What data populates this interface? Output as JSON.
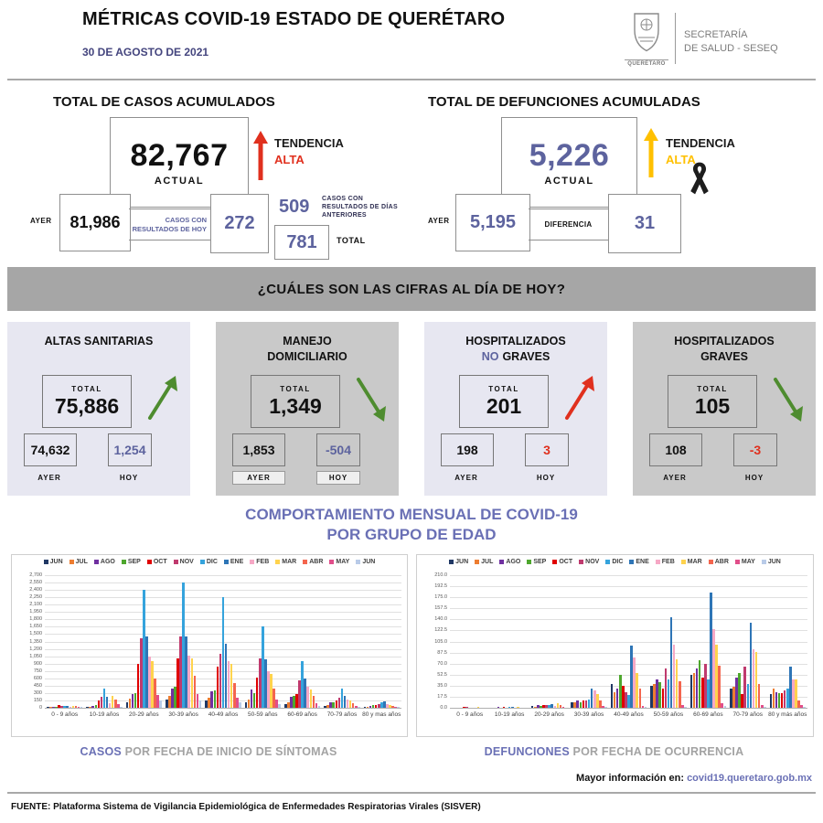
{
  "header": {
    "title": "MÉTRICAS COVID-19 ESTADO DE QUERÉTARO",
    "date": "30 DE AGOSTO DE 2021",
    "logo_caption": "QUERÉTARO",
    "org_line1": "SECRETARÍA",
    "org_line2": "DE SALUD - SESEQ"
  },
  "cases": {
    "title": "TOTAL DE CASOS ACUMULADOS",
    "actual_value": "82,767",
    "actual_label": "ACTUAL",
    "trend_label": "TENDENCIA",
    "trend_value": "ALTA",
    "ayer_label": "AYER",
    "ayer_value": "81,986",
    "today_label": "CASOS CON RESULTADOS DE HOY",
    "today_value": "272",
    "prev_value": "509",
    "prev_label": "CASOS CON RESULTADOS DE DÍAS ANTERIORES",
    "total_value": "781",
    "total_label": "TOTAL"
  },
  "deaths": {
    "title": "TOTAL DE DEFUNCIONES ACUMULADAS",
    "actual_value": "5,226",
    "actual_label": "ACTUAL",
    "trend_label": "TENDENCIA",
    "trend_value": "ALTA",
    "ayer_label": "AYER",
    "ayer_value": "5,195",
    "diff_label": "DIFERENCIA",
    "diff_value": "31"
  },
  "banner": {
    "question": "¿CUÁLES SON LAS CIFRAS AL DÍA DE HOY?"
  },
  "cards": [
    {
      "title_line1": "ALTAS SANITARIAS",
      "title_mid": "",
      "title_line2": "",
      "total_label": "TOTAL",
      "total": "75,886",
      "ayer": "74,632",
      "hoy": "1,254",
      "ayer_label": "AYER",
      "hoy_label": "HOY",
      "shade": "light",
      "arrow_dir": "up",
      "arrow_color": "#4e8c2f",
      "hoy_color": "#5d639e",
      "labels_boxed": false
    },
    {
      "title_line1": "MANEJO",
      "title_mid": "",
      "title_line2": "DOMICILIARIO",
      "total_label": "TOTAL",
      "total": "1,349",
      "ayer": "1,853",
      "hoy": "-504",
      "ayer_label": "AYER",
      "hoy_label": "HOY",
      "shade": "dark",
      "arrow_dir": "down",
      "arrow_color": "#4e8c2f",
      "hoy_color": "#5d639e",
      "labels_boxed": true
    },
    {
      "title_line1": "HOSPITALIZADOS",
      "title_mid": "NO",
      "title_line2": "GRAVES",
      "total_label": "TOTAL",
      "total": "201",
      "ayer": "198",
      "hoy": "3",
      "ayer_label": "AYER",
      "hoy_label": "HOY",
      "shade": "light",
      "arrow_dir": "up",
      "arrow_color": "#e0301e",
      "hoy_color": "#e0301e",
      "labels_boxed": false
    },
    {
      "title_line1": "HOSPITALIZADOS",
      "title_mid": "",
      "title_line2": "GRAVES",
      "total_label": "TOTAL",
      "total": "105",
      "ayer": "108",
      "hoy": "-3",
      "ayer_label": "AYER",
      "hoy_label": "HOY",
      "shade": "dark",
      "arrow_dir": "down",
      "arrow_color": "#4e8c2f",
      "hoy_color": "#e0301e",
      "labels_boxed": false
    }
  ],
  "age_heading": {
    "line1": "COMPORTAMIENTO MENSUAL DE COVID-19",
    "line2": "POR GRUPO DE EDAD"
  },
  "captions": {
    "left_lead": "CASOS",
    "left_rest": " POR FECHA DE INICIO DE SÍNTOMAS",
    "right_lead": "DEFUNCIONES",
    "right_rest": " POR FECHA DE OCURRENCIA"
  },
  "more_info": {
    "label": "Mayor información en:",
    "link": "covid19.queretaro.gob.mx"
  },
  "source": "FUENTE: Plataforma Sistema  de Vigilancia Epidemiológica de Enfermedades Respiratorias Virales (SISVER)",
  "colors": {
    "accent_purple": "#5d639e",
    "heading_purple": "#6a70b5",
    "trend_red": "#e0301e",
    "trend_yellow": "#ffc000",
    "trend_green": "#4e8c2f",
    "banner_gray": "#a6a6a6",
    "card_light": "#e7e7f1",
    "card_dark": "#c9c9c9"
  },
  "chart_data": [
    {
      "type": "bar",
      "title": "CASOS POR FECHA DE INICIO DE SÍNTOMAS",
      "legend_position": "top",
      "grid": true,
      "ylim": [
        0,
        2700
      ],
      "ytick_step": 150,
      "ytick_format": "int-comma",
      "categories": [
        "0 - 9 años",
        "10-19 años",
        "20-29 años",
        "30-39 años",
        "40-49 años",
        "50-59 años",
        "60-69 años",
        "70-79 años",
        "80 y mas años"
      ],
      "colors": [
        "#203864",
        "#ed7d31",
        "#7030a0",
        "#4ea72e",
        "#e00000",
        "#bf3a6e",
        "#35a3dc",
        "#2e75b6",
        "#f6a8c5",
        "#ffd34d",
        "#f4654e",
        "#e14e8a",
        "#b9cbe8"
      ],
      "series": [
        {
          "name": "JUN",
          "values": [
            10,
            15,
            120,
            170,
            140,
            110,
            70,
            35,
            15
          ]
        },
        {
          "name": "JUL",
          "values": [
            15,
            25,
            180,
            250,
            210,
            160,
            110,
            55,
            25
          ]
        },
        {
          "name": "AGO",
          "values": [
            20,
            40,
            280,
            390,
            330,
            380,
            230,
            110,
            45
          ]
        },
        {
          "name": "SEP",
          "values": [
            25,
            60,
            300,
            420,
            360,
            290,
            240,
            120,
            50
          ]
        },
        {
          "name": "OCT",
          "values": [
            60,
            150,
            900,
            1000,
            830,
            620,
            280,
            140,
            55
          ]
        },
        {
          "name": "NOV",
          "values": [
            40,
            220,
            1420,
            1450,
            1100,
            1000,
            560,
            210,
            75
          ]
        },
        {
          "name": "DIC",
          "values": [
            35,
            390,
            2400,
            2550,
            2250,
            1650,
            950,
            390,
            120
          ]
        },
        {
          "name": "ENE",
          "values": [
            30,
            230,
            1450,
            1460,
            1300,
            980,
            600,
            250,
            130
          ]
        },
        {
          "name": "FEB",
          "values": [
            25,
            90,
            1050,
            1060,
            950,
            750,
            420,
            160,
            80
          ]
        },
        {
          "name": "MAR",
          "values": [
            35,
            240,
            950,
            1000,
            900,
            680,
            380,
            150,
            60
          ]
        },
        {
          "name": "ABR",
          "values": [
            30,
            160,
            600,
            650,
            500,
            400,
            240,
            90,
            40
          ]
        },
        {
          "name": "MAY",
          "values": [
            20,
            70,
            260,
            280,
            210,
            170,
            100,
            45,
            20
          ]
        },
        {
          "name": "JUN",
          "values": [
            10,
            25,
            140,
            150,
            110,
            70,
            45,
            20,
            10
          ]
        }
      ]
    },
    {
      "type": "bar",
      "title": "DEFUNCIONES POR FECHA DE OCURRENCIA",
      "legend_position": "top",
      "grid": true,
      "ylim": [
        0,
        210
      ],
      "ytick_step": 17.5,
      "ytick_format": "dec1",
      "categories": [
        "0 - 9 años",
        "10-19 años",
        "20-29 años",
        "30-39 años",
        "40-49 años",
        "50-59 años",
        "60-69 años",
        "70-79 años",
        "80 y más años"
      ],
      "colors": [
        "#203864",
        "#ed7d31",
        "#7030a0",
        "#4ea72e",
        "#e00000",
        "#bf3a6e",
        "#35a3dc",
        "#2e75b6",
        "#f6a8c5",
        "#ffd34d",
        "#f4654e",
        "#e14e8a",
        "#b9cbe8"
      ],
      "series": [
        {
          "name": "JUN",
          "values": [
            0,
            0,
            3,
            8,
            38,
            35,
            52,
            30,
            22
          ]
        },
        {
          "name": "JUL",
          "values": [
            0,
            0,
            2,
            9,
            25,
            38,
            55,
            33,
            30
          ]
        },
        {
          "name": "AGO",
          "values": [
            0,
            1,
            5,
            11,
            30,
            45,
            62,
            48,
            25
          ]
        },
        {
          "name": "SEP",
          "values": [
            0,
            0,
            3,
            9,
            52,
            40,
            75,
            55,
            23
          ]
        },
        {
          "name": "OCT",
          "values": [
            1,
            2,
            5,
            12,
            35,
            30,
            48,
            22,
            23
          ]
        },
        {
          "name": "NOV",
          "values": [
            1,
            0,
            4,
            11,
            25,
            63,
            70,
            65,
            28
          ]
        },
        {
          "name": "DIC",
          "values": [
            0,
            1,
            5,
            13,
            20,
            45,
            45,
            37,
            30
          ]
        },
        {
          "name": "ENE",
          "values": [
            0,
            1,
            6,
            31,
            98,
            143,
            183,
            135,
            65
          ]
        },
        {
          "name": "FEB",
          "values": [
            0,
            0,
            3,
            27,
            80,
            100,
            125,
            92,
            45
          ]
        },
        {
          "name": "MAR",
          "values": [
            1,
            1,
            7,
            22,
            55,
            77,
            100,
            88,
            45
          ]
        },
        {
          "name": "ABR",
          "values": [
            0,
            0,
            5,
            12,
            30,
            42,
            67,
            38,
            12
          ]
        },
        {
          "name": "MAY",
          "values": [
            0,
            0,
            1,
            3,
            3,
            5,
            7,
            5,
            4
          ]
        },
        {
          "name": "JUN",
          "values": [
            0,
            0,
            0,
            1,
            1,
            2,
            3,
            2,
            2
          ]
        }
      ]
    }
  ]
}
